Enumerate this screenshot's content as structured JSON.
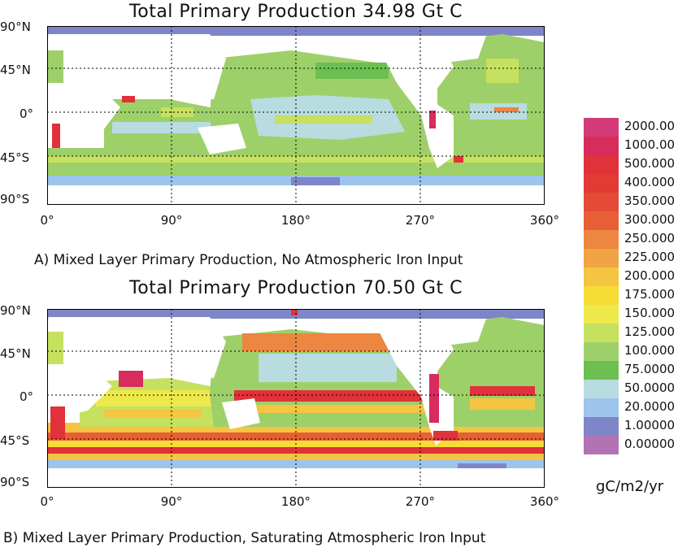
{
  "panel_a": {
    "title": "Total Primary Production 34.98 Gt C",
    "caption": "A) Mixed Layer Primary Production, No Atmospheric Iron Input"
  },
  "panel_b": {
    "title": "Total Primary Production 70.50 Gt C",
    "caption": "B) Mixed Layer Primary Production, Saturating Atmospheric Iron Input"
  },
  "lat_labels": [
    "90°N",
    "45°N",
    "0°",
    "45°S",
    "90°S"
  ],
  "lon_labels": [
    "0°",
    "90°",
    "180°",
    "270°",
    "360°"
  ],
  "legend": {
    "values": [
      "2000.00",
      "1000.00",
      "500.000",
      "400.000",
      "350.000",
      "300.000",
      "250.000",
      "225.000",
      "200.000",
      "175.000",
      "150.000",
      "125.000",
      "100.000",
      "75.0000",
      "50.0000",
      "20.0000",
      "1.00000",
      "0.00000"
    ],
    "colors": [
      "#d23a78",
      "#d72c5c",
      "#e1313a",
      "#e23a35",
      "#e44a35",
      "#e85f36",
      "#ec8640",
      "#f0a444",
      "#f5c440",
      "#f6dc34",
      "#eee94a",
      "#c6e060",
      "#9ed06a",
      "#6cbf50",
      "#b8dce0",
      "#9dc4ea",
      "#7e86c8",
      "#b273b4"
    ],
    "units": "gC/m2/yr"
  },
  "colors": {
    "ocean_low": "#b8dce0",
    "ocean_mid": "#9ed06a",
    "polar": "#7e86c8",
    "high": "#e1313a"
  }
}
